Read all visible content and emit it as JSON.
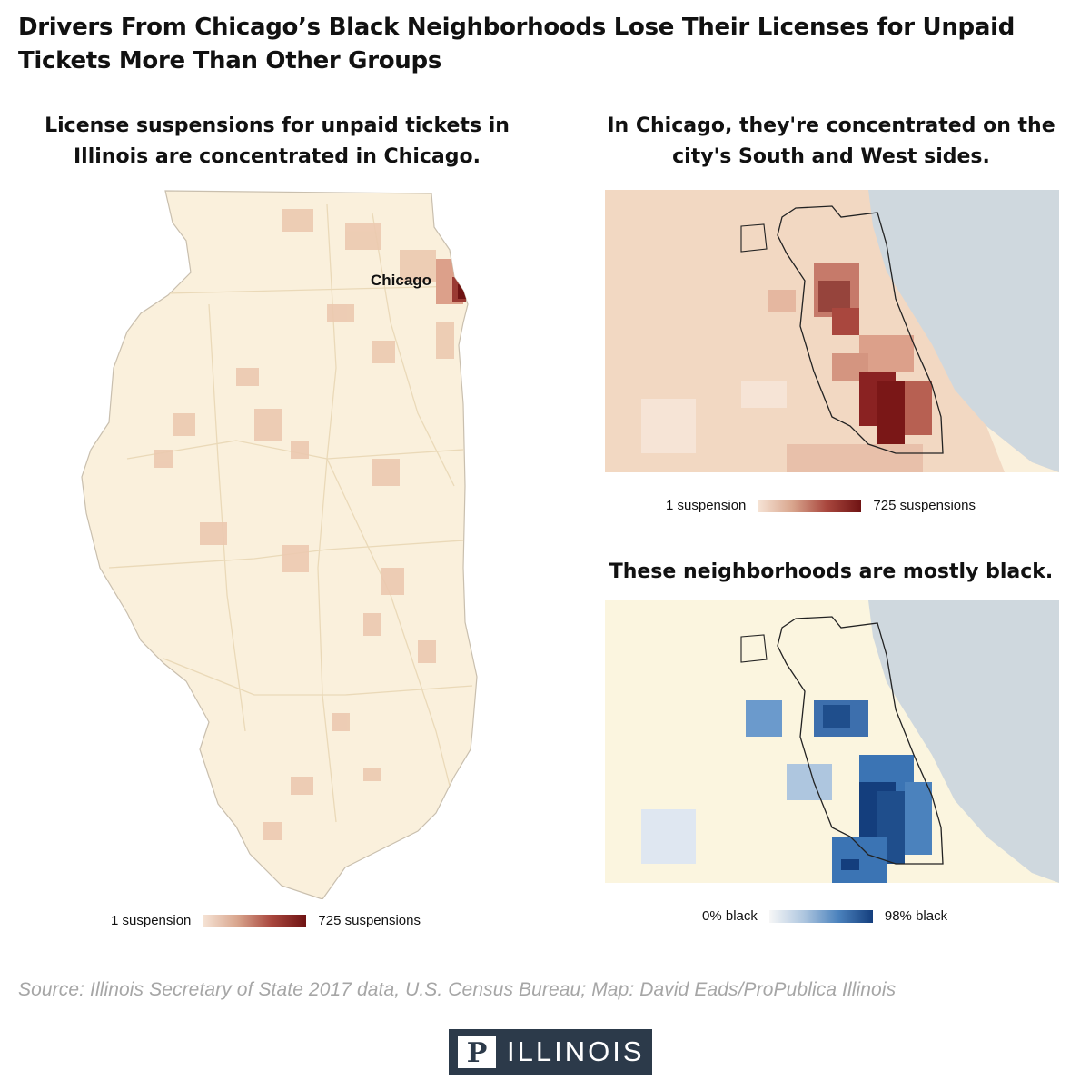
{
  "title": "Drivers From Chicago’s Black Neighborhoods Lose Their Licenses for Unpaid Tickets More Than Other Groups",
  "panels": {
    "illinois": {
      "title": "License suspensions for unpaid tickets in Illinois are concentrated in Chicago.",
      "city_label": "Chicago",
      "legend": {
        "min_label": "1 suspension",
        "max_label": "725 suspensions"
      }
    },
    "chicago_suspensions": {
      "title": "In Chicago, they're concentrated on the city's South and West sides.",
      "legend": {
        "min_label": "1 suspension",
        "max_label": "725 suspensions"
      }
    },
    "chicago_race": {
      "title": "These neighborhoods are mostly black.",
      "legend": {
        "min_label": "0% black",
        "max_label": "98% black"
      }
    }
  },
  "source": "Source: Illinois Secretary of State 2017 data, U.S. Census Bureau; Map: David Eads/ProPublica Illinois",
  "logo": {
    "text": "ILLINOIS",
    "mark": "P"
  },
  "colors": {
    "land": "#faf0dc",
    "lake": "#cfd8de",
    "suspension_low": "#f6e4d6",
    "suspension_high": "#6f1313",
    "race_low": "#f7f7f7",
    "race_high": "#143e7d",
    "source_text": "#a6a6a6",
    "logo_bg": "#2c3a4a"
  }
}
